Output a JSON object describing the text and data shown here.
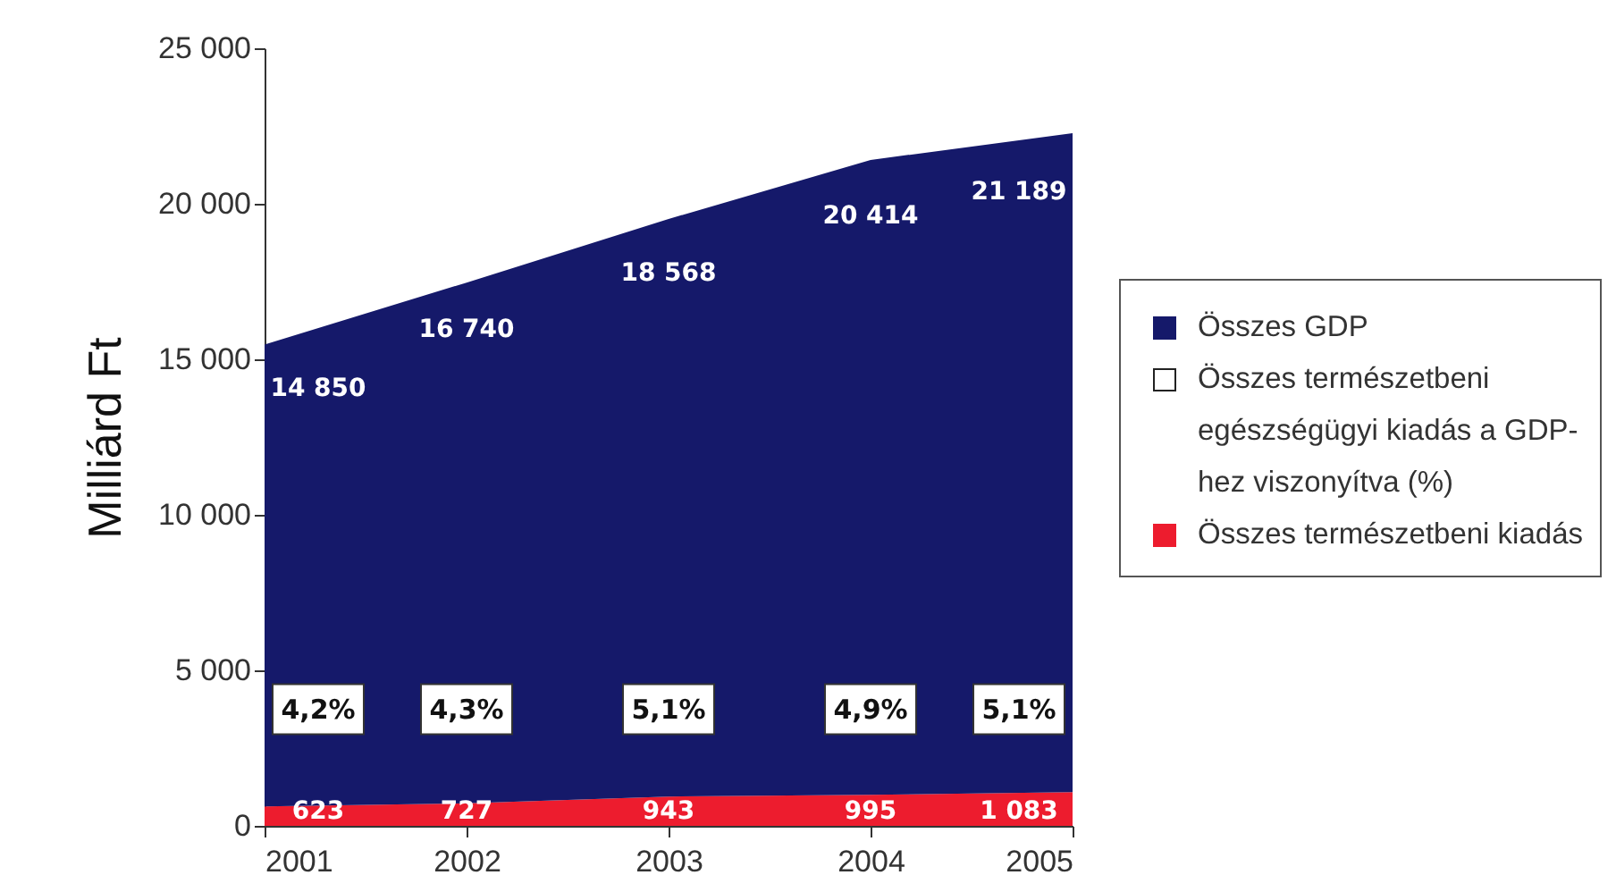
{
  "chart_data": {
    "type": "area",
    "ylabel": "Milliárd Ft",
    "x": [
      2001,
      2002,
      2003,
      2004,
      2005
    ],
    "xlim": [
      2001,
      2005
    ],
    "xticks": [
      2001,
      2002,
      2003,
      2004,
      2005
    ],
    "ylim": [
      0,
      25000
    ],
    "yticks": [
      {
        "value": 0,
        "label": "0"
      },
      {
        "value": 5000,
        "label": "5 000"
      },
      {
        "value": 10000,
        "label": "10 000"
      },
      {
        "value": 15000,
        "label": "15 000"
      },
      {
        "value": 20000,
        "label": "20 000"
      },
      {
        "value": 25000,
        "label": "25 000"
      }
    ],
    "stacked": true,
    "data_labels": true,
    "legend": "right",
    "grid": false,
    "series": [
      {
        "name": "Összes természetbeni kiadás",
        "color": "#ed1c2e",
        "values": [
          623,
          727,
          943,
          995,
          1083
        ]
      },
      {
        "name": "Összes GDP",
        "color": "#15196a",
        "values": [
          14850,
          16740,
          18568,
          20414,
          21189
        ]
      }
    ],
    "annotations": [
      "Összes természetbeni egészségügyi kiadás a GDP-hez viszonyítva (%)",
      "4,2%",
      "4,3%",
      "5,1%",
      "4,9%",
      "5,1%"
    ]
  }
}
